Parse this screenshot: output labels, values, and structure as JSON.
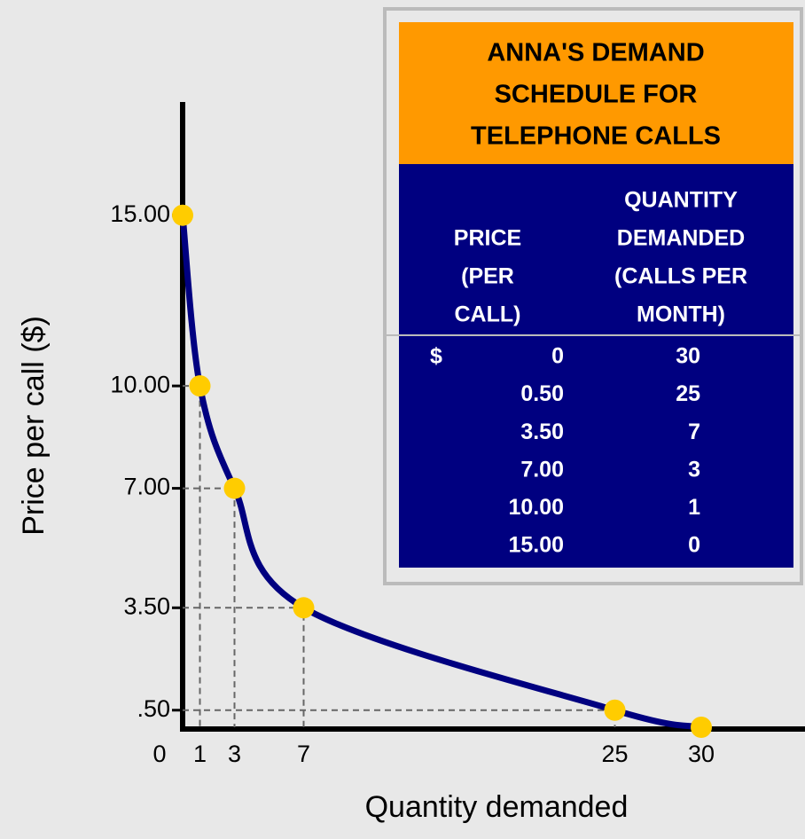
{
  "chart_data": {
    "type": "line",
    "xlabel": "Quantity demanded",
    "ylabel": "Price per call ($)",
    "x": [
      0,
      1,
      3,
      7,
      25,
      30
    ],
    "series": [
      {
        "color": "#000080",
        "marker_color": "#ffcc00",
        "values": [
          15,
          10,
          7,
          3.5,
          0.5,
          0
        ]
      }
    ],
    "xlim": [
      0,
      36
    ],
    "ylim": [
      0,
      18.5
    ],
    "xticks": [
      0,
      1,
      3,
      7,
      25,
      30
    ],
    "yticks": [
      {
        "value": 0.5,
        "label": ".50"
      },
      {
        "value": 3.5,
        "label": "3.50"
      },
      {
        "value": 7,
        "label": "7.00"
      },
      {
        "value": 10,
        "label": "10.00"
      },
      {
        "value": 15,
        "label": "15.00"
      }
    ],
    "grid": false
  },
  "table": {
    "title_lines": [
      "ANNA'S DEMAND",
      "SCHEDULE FOR",
      "TELEPHONE CALLS"
    ],
    "price_header_lines": [
      "PRICE",
      "(PER",
      "CALL)"
    ],
    "quantity_header_lines": [
      "QUANTITY",
      "DEMANDED",
      "(CALLS PER",
      "MONTH)"
    ],
    "currency": "$",
    "rows": [
      [
        "0",
        "30"
      ],
      [
        "0.50",
        "25"
      ],
      [
        "3.50",
        "7"
      ],
      [
        "7.00",
        "3"
      ],
      [
        "10.00",
        "1"
      ],
      [
        "15.00",
        "0"
      ]
    ]
  }
}
